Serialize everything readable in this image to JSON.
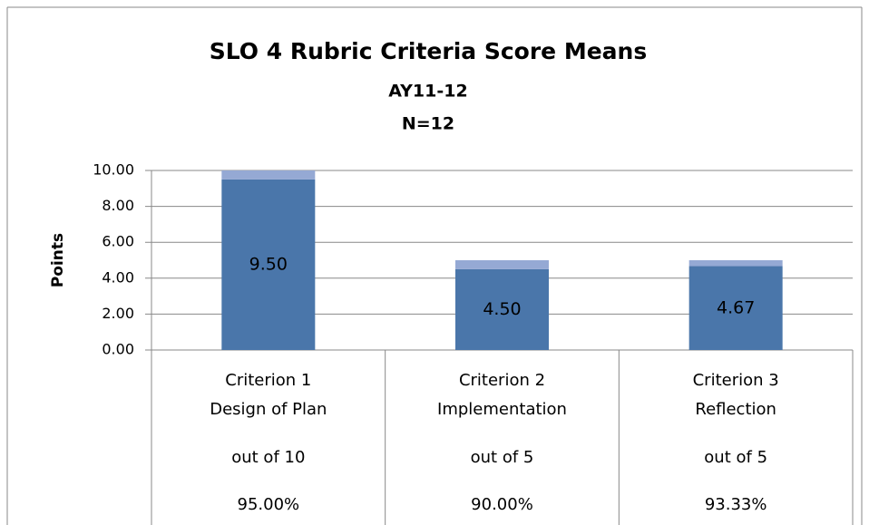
{
  "chart_data": {
    "type": "stacked-bar",
    "title": "SLO 4 Rubric Criteria Score Means",
    "subtitle": [
      "AY11-12",
      "N=12"
    ],
    "y_label": "Points",
    "categories": [
      [
        "Criterion 1",
        "Design of Plan",
        "out of 10",
        "95.00%"
      ],
      [
        "Criterion 2",
        "Implementation",
        "out of 5",
        "90.00%"
      ],
      [
        "Criterion 3",
        "Reflection",
        "out of 5",
        "93.33%"
      ]
    ],
    "series": [
      {
        "color": "#4a76aa",
        "values": [
          9.5,
          4.5,
          4.67
        ],
        "value_labels": [
          "9.50",
          "4.50",
          "4.67"
        ]
      },
      {
        "color": "#95a9d4",
        "values": [
          0.5,
          0.5,
          0.33
        ]
      }
    ],
    "ylim": [
      0,
      10
    ],
    "yticks": [
      {
        "value": 0,
        "label": "0.00"
      },
      {
        "value": 2,
        "label": "2.00"
      },
      {
        "value": 4,
        "label": "4.00"
      },
      {
        "value": 6,
        "label": "6.00"
      },
      {
        "value": 8,
        "label": "8.00"
      },
      {
        "value": 10,
        "label": "10.00"
      }
    ],
    "grid": true
  }
}
